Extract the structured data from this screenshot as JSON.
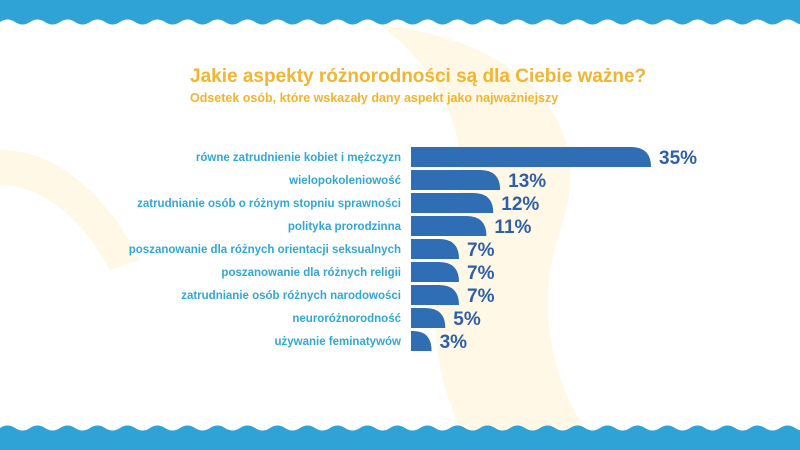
{
  "colors": {
    "title": "#F2B431",
    "category_label": "#2FA8D8",
    "bar": "#2F6DB5",
    "value_label": "#2F5FA8",
    "wave": "#2FA3D6",
    "background_swoosh": "#FFF8E6"
  },
  "chart_data": {
    "type": "bar",
    "orientation": "horizontal",
    "title": "Jakie aspekty różnorodności są dla Ciebie ważne?",
    "subtitle": "Odsetek osób, które wskazały dany aspekt jako najważniejszy",
    "categories": [
      "równe zatrudnienie kobiet i mężczyzn",
      "wielopokoleniowość",
      "zatrudnianie osób o różnym stopniu sprawności",
      "polityka prorodzinna",
      "poszanowanie dla różnych orientacji seksualnych",
      "poszanowanie dla różnych religii",
      "zatrudnianie osób różnych narodowości",
      "neuroróżnorodność",
      "używanie feminatywów"
    ],
    "values": [
      35,
      13,
      12,
      11,
      7,
      7,
      7,
      5,
      3
    ],
    "value_labels": [
      "35%",
      "13%",
      "12%",
      "11%",
      "7%",
      "7%",
      "7%",
      "5%",
      "3%"
    ],
    "unit": "%",
    "xlim": [
      0,
      35
    ],
    "grid": false,
    "legend": "none"
  }
}
